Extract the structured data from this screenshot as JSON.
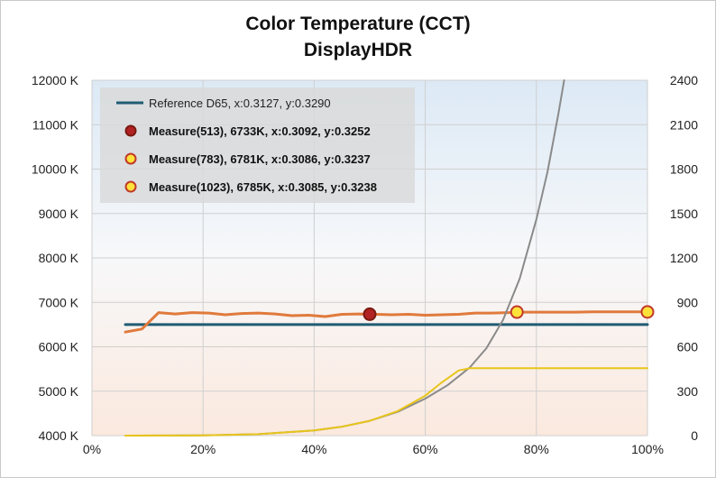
{
  "chart_data": {
    "type": "line",
    "title": "Color Temperature (CCT)",
    "subtitle": "DisplayHDR",
    "x_axis": {
      "ticks": [
        "0%",
        "20%",
        "40%",
        "60%",
        "80%",
        "100%"
      ],
      "tick_values": [
        0,
        20,
        40,
        60,
        80,
        100
      ],
      "range": [
        0,
        100
      ]
    },
    "y_left": {
      "ticks": [
        "4000 K",
        "5000 K",
        "6000 K",
        "7000 K",
        "8000 K",
        "9000 K",
        "10000 K",
        "11000 K",
        "12000 K"
      ],
      "tick_values": [
        4000,
        5000,
        6000,
        7000,
        8000,
        9000,
        10000,
        11000,
        12000
      ],
      "range": [
        4000,
        12000
      ]
    },
    "y_right": {
      "ticks": [
        "0",
        "300",
        "600",
        "900",
        "1200",
        "1500",
        "1800",
        "2100",
        "2400"
      ],
      "tick_values": [
        0,
        300,
        600,
        900,
        1200,
        1500,
        1800,
        2100,
        2400
      ],
      "range": [
        0,
        2400
      ]
    },
    "grid": true,
    "legend_position": "top-left",
    "colors": {
      "reference": "#1f5c73",
      "cct": "#e07a3c",
      "gray_curve": "#8a8a8a",
      "yellow_curve": "#e8c51a",
      "marker_dark_fill": "#b22222",
      "marker_light_fill": "#ffe23a",
      "marker_outline": "#c0392b",
      "bg_top": "#dce9f5",
      "bg_bottom": "#fbe9de"
    },
    "legend": [
      {
        "label": "Reference D65, x:0.3127, y:0.3290",
        "symbol": "line",
        "bold": false
      },
      {
        "label": "Measure(513), 6733K, x:0.3092, y:0.3252",
        "symbol": "dark-dot",
        "bold": true
      },
      {
        "label": "Measure(783), 6781K, x:0.3086, y:0.3237",
        "symbol": "light-dot",
        "bold": true
      },
      {
        "label": "Measure(1023), 6785K, x:0.3085, y:0.3238",
        "symbol": "light-dot",
        "bold": true
      }
    ],
    "series": [
      {
        "name": "Reference D65, x:0.3127, y:0.3290",
        "axis": "left",
        "x": [
          6,
          100
        ],
        "y": [
          6500,
          6500
        ]
      },
      {
        "axis": "left",
        "x": [
          6,
          9,
          12,
          15,
          18,
          21,
          24,
          27,
          30,
          33,
          36,
          39,
          42,
          45,
          48,
          51,
          54,
          57,
          60,
          63,
          66,
          69,
          72,
          75,
          78,
          81,
          84,
          87,
          90,
          93,
          96,
          100
        ],
        "y": [
          6330,
          6400,
          6770,
          6740,
          6770,
          6760,
          6720,
          6750,
          6760,
          6740,
          6700,
          6710,
          6680,
          6730,
          6740,
          6730,
          6720,
          6730,
          6710,
          6720,
          6730,
          6760,
          6760,
          6770,
          6780,
          6780,
          6780,
          6780,
          6785,
          6785,
          6785,
          6785
        ]
      },
      {
        "axis": "right",
        "x": [
          6,
          20,
          30,
          40,
          45,
          50,
          55,
          60,
          64,
          68,
          71,
          74,
          77,
          80,
          82,
          84,
          85
        ],
        "y": [
          0,
          2,
          10,
          35,
          60,
          100,
          160,
          250,
          340,
          460,
          590,
          780,
          1060,
          1460,
          1780,
          2180,
          2400
        ]
      },
      {
        "axis": "right",
        "x": [
          6,
          20,
          30,
          40,
          45,
          50,
          55,
          60,
          63,
          66,
          68,
          100
        ],
        "y": [
          0,
          2,
          10,
          35,
          60,
          100,
          165,
          270,
          360,
          440,
          455,
          455
        ]
      }
    ],
    "markers": [
      {
        "x": 50,
        "y": 6733,
        "style": "dark"
      },
      {
        "x": 76.5,
        "y": 6781,
        "style": "light"
      },
      {
        "x": 100,
        "y": 6785,
        "style": "light"
      }
    ]
  }
}
